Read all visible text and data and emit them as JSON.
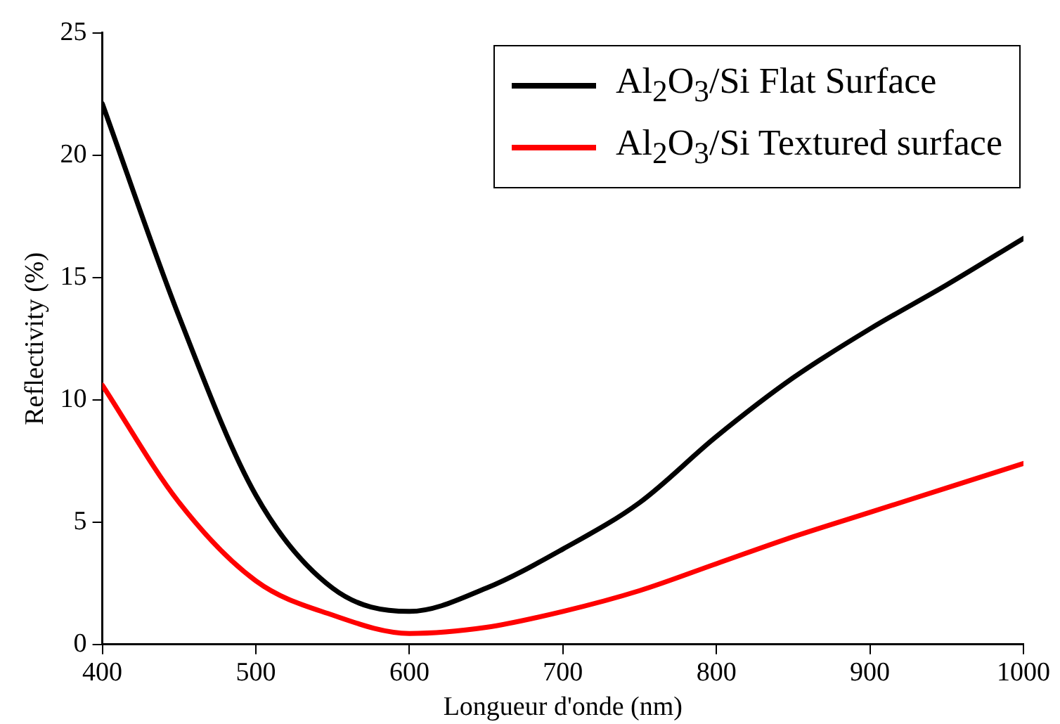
{
  "chart_data": {
    "type": "line",
    "xlabel": "Longueur d'onde (nm)",
    "ylabel": "Reflectivity (%)",
    "x": [
      400,
      450,
      500,
      550,
      600,
      650,
      700,
      750,
      800,
      850,
      900,
      950,
      1000
    ],
    "series": [
      {
        "name": "Al$_{2}$O$_{3}$/Si Flat Surface",
        "color": "#000000",
        "values": [
          22.1,
          13.4,
          6.1,
          2.3,
          1.35,
          2.3,
          3.9,
          5.8,
          8.5,
          10.9,
          12.9,
          14.7,
          16.6
        ]
      },
      {
        "name": "Al$_{2}$O$_{3}$/Si Textured surface",
        "color": "#ff0000",
        "values": [
          10.6,
          5.8,
          2.6,
          1.2,
          0.45,
          0.7,
          1.35,
          2.2,
          3.3,
          4.4,
          5.4,
          6.4,
          7.4
        ]
      }
    ],
    "xlim": [
      400,
      1000
    ],
    "xticks": [
      400,
      500,
      600,
      700,
      800,
      900,
      1000
    ],
    "ylim": [
      0,
      25
    ],
    "yticks": [
      0,
      5,
      10,
      15,
      20,
      25
    ],
    "grid": false,
    "legend": "top right",
    "marker": "none",
    "line_style": "solid"
  }
}
